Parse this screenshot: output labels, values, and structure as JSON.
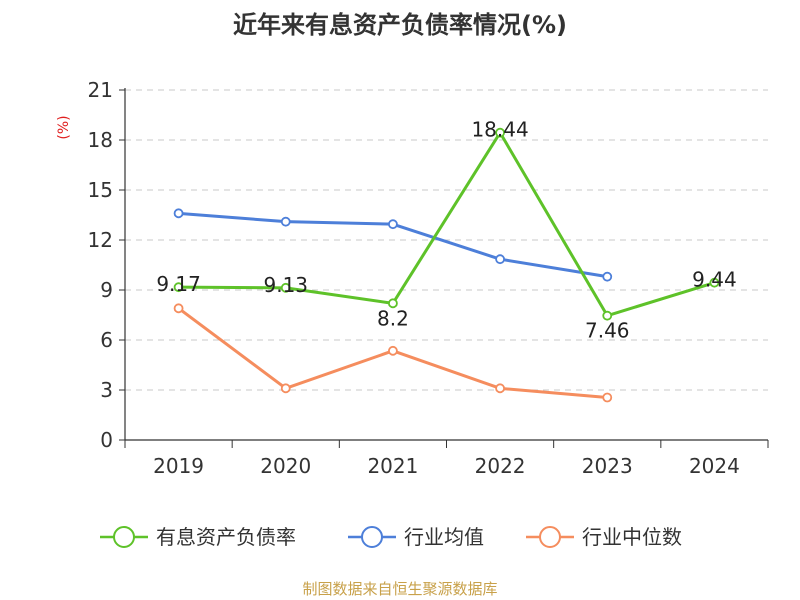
{
  "chart_data": {
    "type": "line",
    "title": "近年来有息资产负债率情况(%)",
    "ylabel": "(%)",
    "xlabel": "",
    "categories": [
      "2019",
      "2020",
      "2021",
      "2022",
      "2023",
      "2024"
    ],
    "ylim": [
      0,
      21
    ],
    "yticks": [
      0,
      3,
      6,
      9,
      12,
      15,
      18,
      21
    ],
    "grid": true,
    "legend_position": "bottom",
    "series": [
      {
        "name": "有息资产负债率",
        "color": "#5ec229",
        "values": [
          9.17,
          9.13,
          8.2,
          18.44,
          7.46,
          9.44
        ],
        "show_labels": true
      },
      {
        "name": "行业均值",
        "color": "#4d7fd9",
        "values": [
          13.6,
          13.1,
          12.95,
          10.85,
          9.8,
          null
        ],
        "show_labels": false
      },
      {
        "name": "行业中位数",
        "color": "#f58d5e",
        "values": [
          7.9,
          3.1,
          5.35,
          3.1,
          2.55,
          null
        ],
        "show_labels": false
      }
    ]
  },
  "footer": "制图数据来自恒生聚源数据库"
}
